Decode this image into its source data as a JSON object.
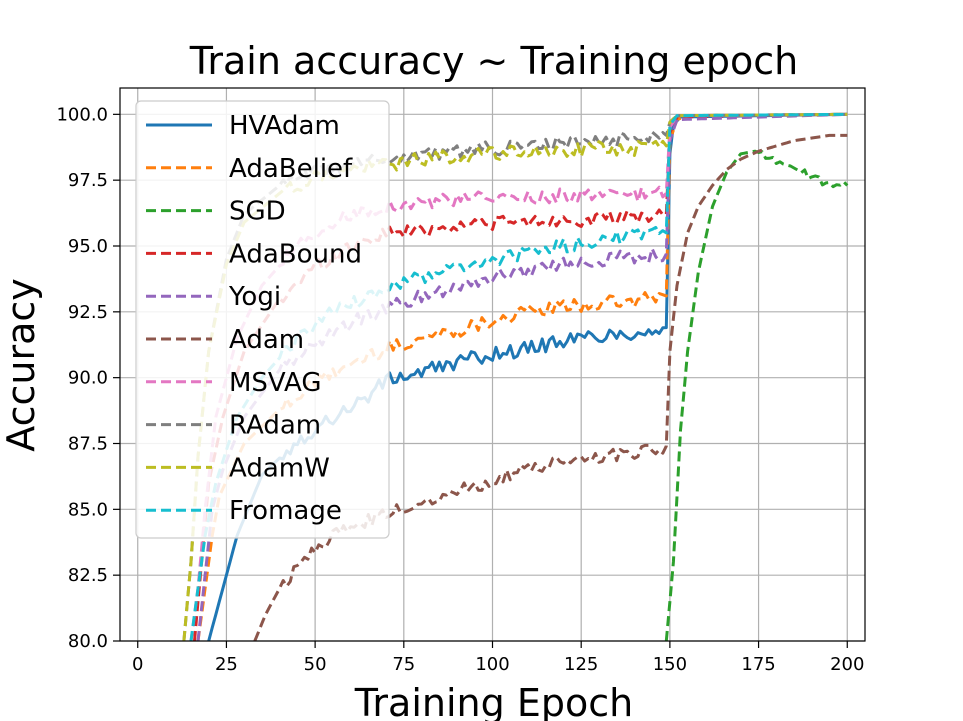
{
  "chart_data": {
    "type": "line",
    "title": "Train accuracy ~ Training epoch",
    "xlabel": "Training Epoch",
    "ylabel": "Accuracy",
    "xlim": [
      -5,
      205
    ],
    "ylim": [
      80,
      101
    ],
    "xticks": [
      0,
      25,
      50,
      75,
      100,
      125,
      150,
      175,
      200
    ],
    "xtick_labels": [
      "0",
      "25",
      "50",
      "75",
      "100",
      "125",
      "150",
      "175",
      "200"
    ],
    "yticks": [
      80,
      82.5,
      85,
      87.5,
      90,
      92.5,
      95,
      97.5,
      100
    ],
    "ytick_labels": [
      "80.0",
      "82.5",
      "85.0",
      "87.5",
      "90.0",
      "92.5",
      "95.0",
      "97.5",
      "100.0"
    ],
    "grid": true,
    "legend_position": "upper-left",
    "series": [
      {
        "name": "HVAdam",
        "color": "#1f77b4",
        "style": "solid",
        "points": [
          [
            20,
            80
          ],
          [
            22,
            81
          ],
          [
            24,
            82
          ],
          [
            26,
            83
          ],
          [
            28,
            84
          ],
          [
            35,
            86.3
          ],
          [
            45,
            87.6
          ],
          [
            55,
            88.5
          ],
          [
            65,
            89.3
          ],
          [
            70,
            89.9
          ],
          [
            80,
            90.2
          ],
          [
            90,
            90.6
          ],
          [
            100,
            90.9
          ],
          [
            110,
            91.1
          ],
          [
            120,
            91.4
          ],
          [
            130,
            91.6
          ],
          [
            140,
            91.7
          ],
          [
            149,
            91.9
          ],
          [
            150,
            98.5
          ],
          [
            151,
            99.6
          ],
          [
            153,
            99.9
          ],
          [
            200,
            100
          ]
        ]
      },
      {
        "name": "AdaBelief",
        "color": "#ff7f0e",
        "style": "dashed",
        "points": [
          [
            17,
            80
          ],
          [
            19,
            82
          ],
          [
            21,
            84
          ],
          [
            23,
            85.5
          ],
          [
            30,
            87.5
          ],
          [
            40,
            88.8
          ],
          [
            50,
            89.8
          ],
          [
            60,
            90.5
          ],
          [
            70,
            91.1
          ],
          [
            80,
            91.5
          ],
          [
            90,
            91.8
          ],
          [
            100,
            92.2
          ],
          [
            110,
            92.5
          ],
          [
            120,
            92.7
          ],
          [
            130,
            92.8
          ],
          [
            140,
            92.9
          ],
          [
            149,
            93.1
          ],
          [
            150,
            99.0
          ],
          [
            152,
            99.8
          ],
          [
            155,
            99.95
          ],
          [
            200,
            100
          ]
        ]
      },
      {
        "name": "SGD",
        "color": "#2ca02c",
        "style": "dashed",
        "points": [
          [
            149,
            80
          ],
          [
            151,
            83
          ],
          [
            153,
            88
          ],
          [
            155,
            91
          ],
          [
            158,
            94
          ],
          [
            162,
            96.5
          ],
          [
            166,
            97.8
          ],
          [
            170,
            98.5
          ],
          [
            174,
            98.6
          ],
          [
            178,
            98.4
          ],
          [
            182,
            98.1
          ],
          [
            186,
            97.9
          ],
          [
            190,
            97.6
          ],
          [
            194,
            97.4
          ],
          [
            197,
            97.4
          ],
          [
            200,
            97.3
          ]
        ]
      },
      {
        "name": "AdaBound",
        "color": "#d62728",
        "style": "dashed",
        "points": [
          [
            16,
            80
          ],
          [
            18,
            83
          ],
          [
            20,
            86
          ],
          [
            24,
            88.5
          ],
          [
            30,
            91
          ],
          [
            40,
            93
          ],
          [
            50,
            94.2
          ],
          [
            60,
            95
          ],
          [
            70,
            95.5
          ],
          [
            80,
            95.6
          ],
          [
            90,
            95.8
          ],
          [
            100,
            95.9
          ],
          [
            110,
            95.9
          ],
          [
            120,
            96.0
          ],
          [
            130,
            96.0
          ],
          [
            140,
            96.1
          ],
          [
            149,
            96.2
          ],
          [
            150,
            99.3
          ],
          [
            152,
            99.9
          ],
          [
            200,
            100
          ]
        ]
      },
      {
        "name": "Yogi",
        "color": "#9467bd",
        "style": "dashed",
        "points": [
          [
            17,
            80
          ],
          [
            19,
            82.5
          ],
          [
            21,
            85
          ],
          [
            24,
            86.5
          ],
          [
            30,
            88.5
          ],
          [
            40,
            90.3
          ],
          [
            50,
            91.3
          ],
          [
            60,
            92.1
          ],
          [
            70,
            92.6
          ],
          [
            80,
            93.1
          ],
          [
            90,
            93.5
          ],
          [
            100,
            93.8
          ],
          [
            110,
            94.1
          ],
          [
            120,
            94.3
          ],
          [
            130,
            94.5
          ],
          [
            140,
            94.6
          ],
          [
            149,
            94.7
          ],
          [
            150,
            99.0
          ],
          [
            152,
            99.8
          ],
          [
            200,
            100
          ]
        ]
      },
      {
        "name": "Adam",
        "color": "#8c564b",
        "style": "dashed",
        "points": [
          [
            33,
            80
          ],
          [
            36,
            81
          ],
          [
            40,
            82
          ],
          [
            45,
            82.8
          ],
          [
            50,
            83.5
          ],
          [
            55,
            84
          ],
          [
            60,
            84.3
          ],
          [
            70,
            84.8
          ],
          [
            80,
            85.3
          ],
          [
            90,
            85.7
          ],
          [
            100,
            86.1
          ],
          [
            110,
            86.5
          ],
          [
            120,
            86.8
          ],
          [
            130,
            87.0
          ],
          [
            140,
            87.2
          ],
          [
            149,
            87.4
          ],
          [
            150,
            91
          ],
          [
            152,
            93.5
          ],
          [
            155,
            95.5
          ],
          [
            158,
            96.5
          ],
          [
            162,
            97.3
          ],
          [
            166,
            97.9
          ],
          [
            170,
            98.3
          ],
          [
            175,
            98.6
          ],
          [
            180,
            98.8
          ],
          [
            185,
            99.0
          ],
          [
            190,
            99.1
          ],
          [
            195,
            99.2
          ],
          [
            200,
            99.2
          ]
        ]
      },
      {
        "name": "MSVAG",
        "color": "#e377c2",
        "style": "dashed",
        "points": [
          [
            15,
            80
          ],
          [
            17,
            82
          ],
          [
            19,
            85
          ],
          [
            22,
            88.5
          ],
          [
            28,
            91.5
          ],
          [
            35,
            93.5
          ],
          [
            45,
            95
          ],
          [
            55,
            95.9
          ],
          [
            65,
            96.4
          ],
          [
            75,
            96.6
          ],
          [
            85,
            96.7
          ],
          [
            95,
            96.8
          ],
          [
            105,
            96.8
          ],
          [
            115,
            96.9
          ],
          [
            125,
            96.9
          ],
          [
            135,
            96.9
          ],
          [
            149,
            97.0
          ],
          [
            150,
            99.5
          ],
          [
            152,
            99.95
          ],
          [
            200,
            100
          ]
        ]
      },
      {
        "name": "RAdam",
        "color": "#7f7f7f",
        "style": "dashed",
        "points": [
          [
            13,
            80
          ],
          [
            15,
            83
          ],
          [
            17,
            87
          ],
          [
            20,
            91
          ],
          [
            25,
            94.5
          ],
          [
            30,
            96.2
          ],
          [
            40,
            97.3
          ],
          [
            50,
            97.8
          ],
          [
            60,
            98.1
          ],
          [
            70,
            98.3
          ],
          [
            80,
            98.5
          ],
          [
            90,
            98.6
          ],
          [
            100,
            98.7
          ],
          [
            110,
            98.8
          ],
          [
            120,
            98.9
          ],
          [
            130,
            99.0
          ],
          [
            140,
            99.1
          ],
          [
            149,
            99.2
          ],
          [
            150,
            99.7
          ],
          [
            152,
            99.95
          ],
          [
            200,
            100
          ]
        ]
      },
      {
        "name": "AdamW",
        "color": "#bcbd22",
        "style": "dashed",
        "points": [
          [
            13,
            80
          ],
          [
            15,
            83
          ],
          [
            17,
            87
          ],
          [
            20,
            91
          ],
          [
            25,
            94.3
          ],
          [
            30,
            95.9
          ],
          [
            40,
            97
          ],
          [
            50,
            97.6
          ],
          [
            60,
            97.9
          ],
          [
            70,
            98.1
          ],
          [
            80,
            98.3
          ],
          [
            90,
            98.4
          ],
          [
            100,
            98.5
          ],
          [
            110,
            98.6
          ],
          [
            120,
            98.6
          ],
          [
            130,
            98.7
          ],
          [
            140,
            98.7
          ],
          [
            149,
            98.8
          ],
          [
            150,
            99.7
          ],
          [
            152,
            99.95
          ],
          [
            200,
            100
          ]
        ]
      },
      {
        "name": "Fromage",
        "color": "#17becf",
        "style": "dashed",
        "points": [
          [
            15,
            80
          ],
          [
            17,
            82
          ],
          [
            19,
            84
          ],
          [
            22,
            86
          ],
          [
            28,
            88.5
          ],
          [
            35,
            90
          ],
          [
            45,
            91.5
          ],
          [
            55,
            92.5
          ],
          [
            65,
            93.1
          ],
          [
            75,
            93.6
          ],
          [
            85,
            94.0
          ],
          [
            95,
            94.3
          ],
          [
            105,
            94.6
          ],
          [
            115,
            94.9
          ],
          [
            125,
            95.1
          ],
          [
            135,
            95.3
          ],
          [
            149,
            95.5
          ],
          [
            150,
            99.6
          ],
          [
            152,
            99.95
          ],
          [
            200,
            100
          ]
        ]
      }
    ]
  }
}
